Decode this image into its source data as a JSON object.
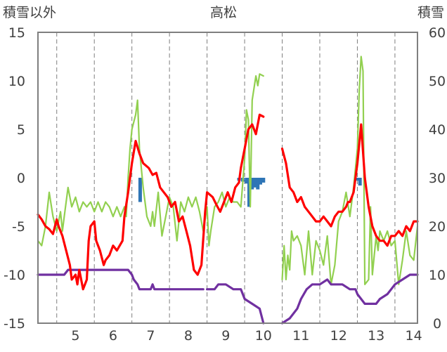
{
  "chart_data": {
    "type": "line",
    "title": "高松",
    "y_left_label": "積雪以外",
    "y_right_label": "積雪",
    "y_left_ticks": [
      "15",
      "10",
      "5",
      "0",
      "-5",
      "-10",
      "-15"
    ],
    "y_right_ticks": [
      "60",
      "50",
      "40",
      "30",
      "20",
      "10",
      "0"
    ],
    "x_ticks": [
      "5",
      "6",
      "7",
      "8",
      "9",
      "10",
      "11",
      "12",
      "13",
      "14"
    ],
    "ylim_left": [
      -15,
      15
    ],
    "ylim_right": [
      0,
      60
    ],
    "xlim": [
      4.5,
      14.6
    ],
    "grid": "dashed vertical at day boundaries",
    "colors": {
      "red": "#ff0000",
      "green": "#92d050",
      "purple": "#7030a0",
      "blue": "#2e75b6",
      "frame": "#7f7f7f"
    },
    "series": [
      {
        "color": "red",
        "axis": "left",
        "points": [
          [
            4.5,
            -3.8
          ],
          [
            4.6,
            -4.3
          ],
          [
            4.7,
            -5.0
          ],
          [
            4.8,
            -5.3
          ],
          [
            4.9,
            -5.8
          ],
          [
            5.0,
            -4.3
          ],
          [
            5.05,
            -5.0
          ],
          [
            5.15,
            -6.0
          ],
          [
            5.25,
            -7.5
          ],
          [
            5.35,
            -9.0
          ],
          [
            5.4,
            -10.5
          ],
          [
            5.5,
            -10.0
          ],
          [
            5.55,
            -11.0
          ],
          [
            5.6,
            -9.5
          ],
          [
            5.7,
            -11.5
          ],
          [
            5.8,
            -10.5
          ],
          [
            5.85,
            -6.5
          ],
          [
            5.9,
            -5.0
          ],
          [
            6.0,
            -4.5
          ],
          [
            6.05,
            -6.5
          ],
          [
            6.15,
            -7.5
          ],
          [
            6.25,
            -9.0
          ],
          [
            6.3,
            -8.5
          ],
          [
            6.4,
            -8.0
          ],
          [
            6.5,
            -7.0
          ],
          [
            6.6,
            -7.5
          ],
          [
            6.75,
            -6.5
          ],
          [
            6.8,
            -4.0
          ],
          [
            6.9,
            -1.5
          ],
          [
            7.0,
            1.5
          ],
          [
            7.1,
            3.8
          ],
          [
            7.2,
            2.5
          ],
          [
            7.3,
            1.5
          ],
          [
            7.45,
            1.0
          ],
          [
            7.55,
            0.3
          ],
          [
            7.65,
            0.5
          ],
          [
            7.75,
            -1.0
          ],
          [
            7.85,
            -1.5
          ],
          [
            7.95,
            -2.0
          ],
          [
            8.05,
            -3.0
          ],
          [
            8.15,
            -2.5
          ],
          [
            8.25,
            -4.5
          ],
          [
            8.35,
            -4.0
          ],
          [
            8.45,
            -5.5
          ],
          [
            8.55,
            -7.0
          ],
          [
            8.65,
            -9.5
          ],
          [
            8.75,
            -10.0
          ],
          [
            8.85,
            -9.0
          ],
          [
            8.95,
            -3.5
          ],
          [
            9.0,
            -1.5
          ],
          [
            9.15,
            -2.0
          ],
          [
            9.25,
            -2.8
          ],
          [
            9.35,
            -3.5
          ],
          [
            9.45,
            -2.5
          ],
          [
            9.55,
            -1.5
          ],
          [
            9.65,
            -2.5
          ],
          [
            9.75,
            -1.0
          ],
          [
            9.85,
            -0.5
          ],
          [
            9.9,
            1.0
          ],
          [
            10.0,
            3.0
          ],
          [
            10.1,
            5.0
          ],
          [
            10.2,
            5.5
          ],
          [
            10.3,
            4.5
          ],
          [
            10.4,
            6.5
          ],
          [
            10.5,
            6.3
          ],
          null,
          [
            11.0,
            3.0
          ],
          [
            11.1,
            1.5
          ],
          [
            11.2,
            -1.0
          ],
          [
            11.3,
            -1.5
          ],
          [
            11.4,
            -2.5
          ],
          [
            11.5,
            -2.0
          ],
          [
            11.6,
            -3.0
          ],
          [
            11.7,
            -3.5
          ],
          [
            11.8,
            -4.0
          ],
          [
            11.9,
            -4.5
          ],
          [
            12.0,
            -4.5
          ],
          [
            12.1,
            -4.0
          ],
          [
            12.2,
            -4.5
          ],
          [
            12.3,
            -5.0
          ],
          [
            12.4,
            -4.0
          ],
          [
            12.5,
            -3.5
          ],
          [
            12.6,
            -3.5
          ],
          [
            12.7,
            -3.0
          ],
          [
            12.75,
            -2.5
          ],
          [
            12.8,
            -2.5
          ],
          [
            12.9,
            -1.5
          ],
          [
            13.0,
            1.5
          ],
          [
            13.1,
            5.5
          ],
          [
            13.2,
            0.0
          ],
          [
            13.3,
            -3.0
          ],
          [
            13.4,
            -5.0
          ],
          [
            13.5,
            -6.0
          ],
          [
            13.6,
            -6.5
          ],
          [
            13.7,
            -6.5
          ],
          [
            13.8,
            -7.0
          ],
          [
            13.9,
            -6.0
          ],
          [
            14.0,
            -6.0
          ],
          [
            14.1,
            -5.5
          ],
          [
            14.2,
            -6.0
          ],
          [
            14.3,
            -5.0
          ],
          [
            14.4,
            -5.5
          ],
          [
            14.5,
            -4.5
          ],
          [
            14.6,
            -4.5
          ]
        ]
      },
      {
        "color": "green",
        "axis": "left",
        "points": [
          [
            4.5,
            -6.5
          ],
          [
            4.6,
            -7.0
          ],
          [
            4.7,
            -5.0
          ],
          [
            4.8,
            -1.5
          ],
          [
            4.9,
            -4.0
          ],
          [
            5.0,
            -5.5
          ],
          [
            5.1,
            -3.5
          ],
          [
            5.15,
            -5.5
          ],
          [
            5.2,
            -4.0
          ],
          [
            5.3,
            -1.0
          ],
          [
            5.4,
            -3.0
          ],
          [
            5.5,
            -2.0
          ],
          [
            5.6,
            -3.5
          ],
          [
            5.7,
            -2.5
          ],
          [
            5.8,
            -3.0
          ],
          [
            5.9,
            -2.5
          ],
          [
            6.0,
            -3.5
          ],
          [
            6.1,
            -2.5
          ],
          [
            6.2,
            -3.5
          ],
          [
            6.3,
            -2.5
          ],
          [
            6.4,
            -3.0
          ],
          [
            6.5,
            -4.0
          ],
          [
            6.6,
            -3.0
          ],
          [
            6.7,
            -4.0
          ],
          [
            6.8,
            -3.0
          ],
          [
            6.85,
            -4.0
          ],
          [
            6.9,
            0.0
          ],
          [
            6.95,
            3.0
          ],
          [
            7.0,
            5.0
          ],
          [
            7.1,
            6.5
          ],
          [
            7.15,
            8.0
          ],
          [
            7.2,
            3.0
          ],
          [
            7.3,
            -1.0
          ],
          [
            7.4,
            -4.0
          ],
          [
            7.5,
            -5.0
          ],
          [
            7.55,
            -3.5
          ],
          [
            7.6,
            -5.0
          ],
          [
            7.7,
            -1.5
          ],
          [
            7.8,
            -6.0
          ],
          [
            7.9,
            -4.0
          ],
          [
            8.0,
            -2.0
          ],
          [
            8.1,
            -3.0
          ],
          [
            8.2,
            -6.5
          ],
          [
            8.3,
            -2.5
          ],
          [
            8.4,
            -3.5
          ],
          [
            8.5,
            -2.0
          ],
          [
            8.6,
            -3.0
          ],
          [
            8.7,
            -2.0
          ],
          [
            8.8,
            -3.5
          ],
          [
            8.9,
            -5.5
          ],
          [
            9.0,
            -3.0
          ],
          [
            9.05,
            -7.0
          ],
          [
            9.1,
            -5.5
          ],
          [
            9.2,
            -3.0
          ],
          [
            9.3,
            -2.5
          ],
          [
            9.4,
            -1.5
          ],
          [
            9.5,
            -3.0
          ],
          [
            9.6,
            -2.0
          ],
          [
            9.7,
            -2.5
          ],
          [
            9.8,
            -2.5
          ],
          [
            9.9,
            -3.0
          ],
          [
            10.0,
            2.0
          ],
          [
            10.05,
            7.0
          ],
          [
            10.1,
            6.0
          ],
          [
            10.15,
            -3.0
          ],
          [
            10.2,
            8.0
          ],
          [
            10.3,
            10.5
          ],
          [
            10.35,
            9.5
          ],
          [
            10.4,
            10.7
          ],
          [
            10.5,
            10.5
          ],
          null,
          [
            11.0,
            -10.5
          ],
          [
            11.05,
            -7.0
          ],
          [
            11.1,
            -10.5
          ],
          [
            11.15,
            -8.0
          ],
          [
            11.2,
            -9.5
          ],
          [
            11.25,
            -5.5
          ],
          [
            11.3,
            -6.5
          ],
          [
            11.4,
            -6.0
          ],
          [
            11.5,
            -7.0
          ],
          [
            11.6,
            -10.0
          ],
          [
            11.7,
            -5.5
          ],
          [
            11.8,
            -10.0
          ],
          [
            11.9,
            -6.5
          ],
          [
            12.0,
            -7.5
          ],
          [
            12.1,
            -9.0
          ],
          [
            12.2,
            -6.0
          ],
          [
            12.3,
            -11.0
          ],
          [
            12.4,
            -9.0
          ],
          [
            12.5,
            -4.5
          ],
          [
            12.6,
            -3.5
          ],
          [
            12.7,
            -1.5
          ],
          [
            12.8,
            -4.0
          ],
          [
            12.9,
            -1.0
          ],
          [
            13.0,
            3.0
          ],
          [
            13.05,
            9.0
          ],
          [
            13.1,
            12.5
          ],
          [
            13.15,
            11.0
          ],
          [
            13.2,
            -11.0
          ],
          [
            13.3,
            -10.5
          ],
          [
            13.35,
            -3.0
          ],
          [
            13.4,
            -10.0
          ],
          [
            13.45,
            -8.0
          ],
          [
            13.5,
            -6.0
          ],
          [
            13.55,
            -7.5
          ],
          [
            13.6,
            -5.5
          ],
          [
            13.7,
            -6.5
          ],
          [
            13.8,
            -5.5
          ],
          [
            13.9,
            -7.0
          ],
          [
            14.0,
            -6.5
          ],
          [
            14.1,
            -11.0
          ],
          [
            14.2,
            -8.5
          ],
          [
            14.3,
            -5.5
          ],
          [
            14.4,
            -8.0
          ],
          [
            14.5,
            -8.5
          ],
          [
            14.6,
            -5.0
          ]
        ]
      },
      {
        "color": "purple",
        "axis": "right",
        "points": [
          [
            4.5,
            10
          ],
          [
            5.2,
            10
          ],
          [
            5.3,
            11
          ],
          [
            6.9,
            11
          ],
          [
            7.0,
            10
          ],
          [
            7.05,
            9
          ],
          [
            7.15,
            8
          ],
          [
            7.2,
            7
          ],
          [
            7.4,
            7
          ],
          [
            7.5,
            7
          ],
          [
            7.55,
            8
          ],
          [
            7.6,
            7
          ],
          [
            8.0,
            7
          ],
          [
            8.9,
            7
          ],
          null,
          [
            9.0,
            7
          ],
          [
            9.2,
            7
          ],
          [
            9.3,
            8
          ],
          [
            9.5,
            8
          ],
          [
            9.7,
            7
          ],
          [
            9.9,
            7
          ],
          [
            10.0,
            5
          ],
          [
            10.2,
            4
          ],
          [
            10.4,
            3
          ],
          [
            10.5,
            0
          ],
          null,
          [
            11.0,
            0
          ],
          [
            11.2,
            1
          ],
          [
            11.4,
            3
          ],
          [
            11.5,
            5
          ],
          [
            11.65,
            7
          ],
          [
            11.8,
            8
          ],
          [
            12.0,
            8
          ],
          [
            12.2,
            9
          ],
          [
            12.3,
            8
          ],
          [
            12.4,
            8
          ],
          [
            12.6,
            8
          ],
          [
            12.8,
            7
          ],
          [
            12.95,
            7
          ],
          [
            13.0,
            6
          ],
          [
            13.2,
            4
          ],
          [
            13.5,
            4
          ],
          [
            13.6,
            5
          ],
          [
            13.8,
            6
          ],
          [
            13.9,
            7
          ],
          [
            14.0,
            8
          ],
          [
            14.2,
            9
          ],
          [
            14.4,
            10
          ],
          [
            14.6,
            10
          ]
        ]
      }
    ],
    "bars": {
      "color": "blue",
      "axis": "left",
      "points": [
        [
          7.22,
          -2.5
        ],
        [
          9.85,
          -0.3
        ],
        [
          9.95,
          -0.4
        ],
        [
          10.05,
          -0.6
        ],
        [
          10.12,
          -3.0
        ],
        [
          10.2,
          -1.2
        ],
        [
          10.27,
          -1.0
        ],
        [
          10.35,
          -1.2
        ],
        [
          10.42,
          -0.7
        ],
        [
          10.5,
          -0.5
        ],
        [
          13.02,
          -0.3
        ],
        [
          13.07,
          -0.8
        ]
      ]
    }
  }
}
